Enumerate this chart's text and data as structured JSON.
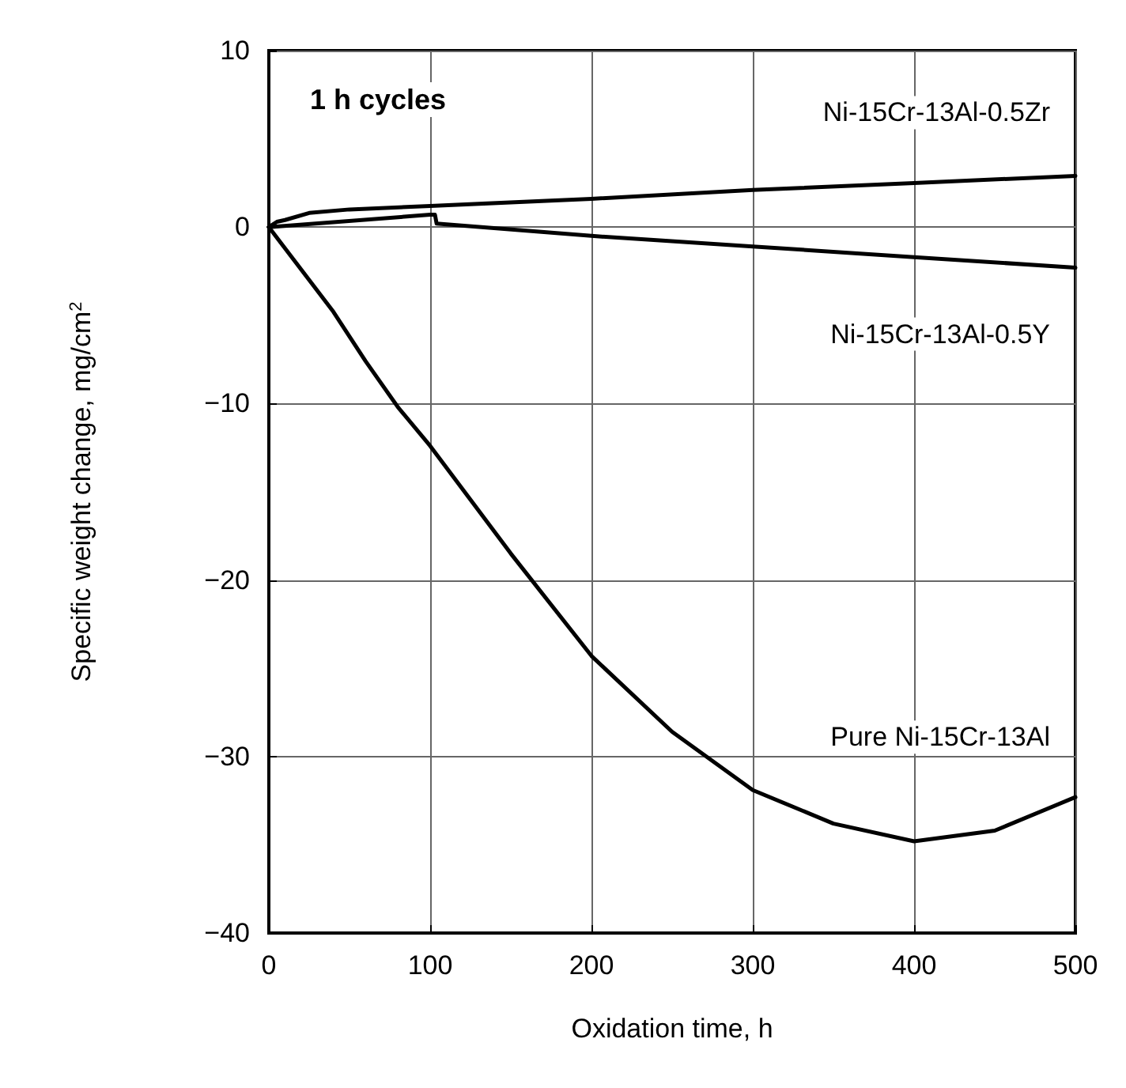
{
  "chart_data": {
    "type": "line",
    "xlabel": "Oxidation time, h",
    "ylabel": "Specific weight change, mg/cm$^{2}$",
    "xlim": [
      0,
      500
    ],
    "xticks": [
      0,
      100,
      200,
      300,
      400,
      500
    ],
    "ylim": [
      -40,
      10
    ],
    "yticks": [
      -40,
      -30,
      -20,
      -10,
      0,
      10
    ],
    "grid": true,
    "legend": false,
    "marker": "none",
    "line_style": "solid",
    "annotations": [
      "1 h cycles"
    ],
    "series": [
      {
        "name": "Ni-15Cr-13Al-0.5Zr",
        "color": "#000000",
        "x": [
          0,
          5,
          10,
          25,
          50,
          100,
          200,
          300,
          400,
          500
        ],
        "values": [
          0,
          0.3,
          0.4,
          0.8,
          1.0,
          1.2,
          1.6,
          2.1,
          2.5,
          2.9
        ]
      },
      {
        "name": "Ni-15Cr-13Al-0.5Y",
        "color": "#000000",
        "x": [
          0,
          100,
          103,
          104,
          200,
          300,
          400,
          500
        ],
        "values": [
          0,
          0.7,
          0.7,
          0.2,
          -0.5,
          -1.1,
          -1.7,
          -2.3
        ]
      },
      {
        "name": "Pure Ni-15Cr-13Al",
        "color": "#000000",
        "x": [
          0,
          20,
          40,
          60,
          80,
          100,
          150,
          200,
          250,
          300,
          350,
          400,
          450,
          500
        ],
        "values": [
          0,
          -2.4,
          -4.8,
          -7.6,
          -10.2,
          -12.4,
          -18.5,
          -24.3,
          -28.6,
          -31.9,
          -33.8,
          -34.8,
          -34.2,
          -32.3
        ]
      }
    ]
  }
}
